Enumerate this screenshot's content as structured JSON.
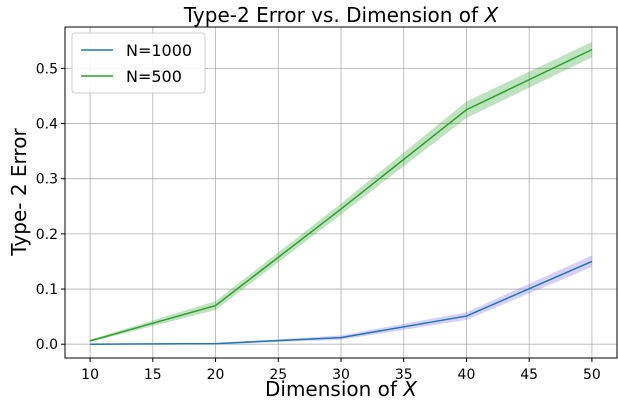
{
  "chart_data": {
    "type": "line",
    "title": "Type-2 Error vs. Dimension of ",
    "title_var": "X",
    "xlabel": "Dimension of ",
    "xlabel_var": "X",
    "ylabel": "Type- 2 Error",
    "x": [
      10,
      20,
      30,
      40,
      50
    ],
    "xlim": [
      8,
      52
    ],
    "ylim": [
      -0.025,
      0.575
    ],
    "xticks": [
      10,
      15,
      20,
      25,
      30,
      35,
      40,
      45,
      50
    ],
    "yticks": [
      0.0,
      0.1,
      0.2,
      0.3,
      0.4,
      0.5
    ],
    "xtick_labels": [
      "10",
      "15",
      "20",
      "25",
      "30",
      "35",
      "40",
      "45",
      "50"
    ],
    "ytick_labels": [
      "0.0",
      "0.1",
      "0.2",
      "0.3",
      "0.4",
      "0.5"
    ],
    "grid": true,
    "legend_position": "top-left",
    "series": [
      {
        "name": "N=1000",
        "values": [
          0.0,
          0.001,
          0.012,
          0.051,
          0.15
        ],
        "lower": [
          0.0,
          0.0,
          0.008,
          0.044,
          0.14
        ],
        "upper": [
          0.001,
          0.002,
          0.016,
          0.058,
          0.161
        ],
        "color": "#1f77b4",
        "band_color": "#7b68ee"
      },
      {
        "name": "N=500",
        "values": [
          0.006,
          0.07,
          0.245,
          0.425,
          0.534
        ],
        "lower": [
          0.004,
          0.062,
          0.235,
          0.41,
          0.52
        ],
        "upper": [
          0.008,
          0.078,
          0.255,
          0.44,
          0.548
        ],
        "color": "#2ca02c",
        "band_color": "#2ca02c"
      }
    ]
  }
}
